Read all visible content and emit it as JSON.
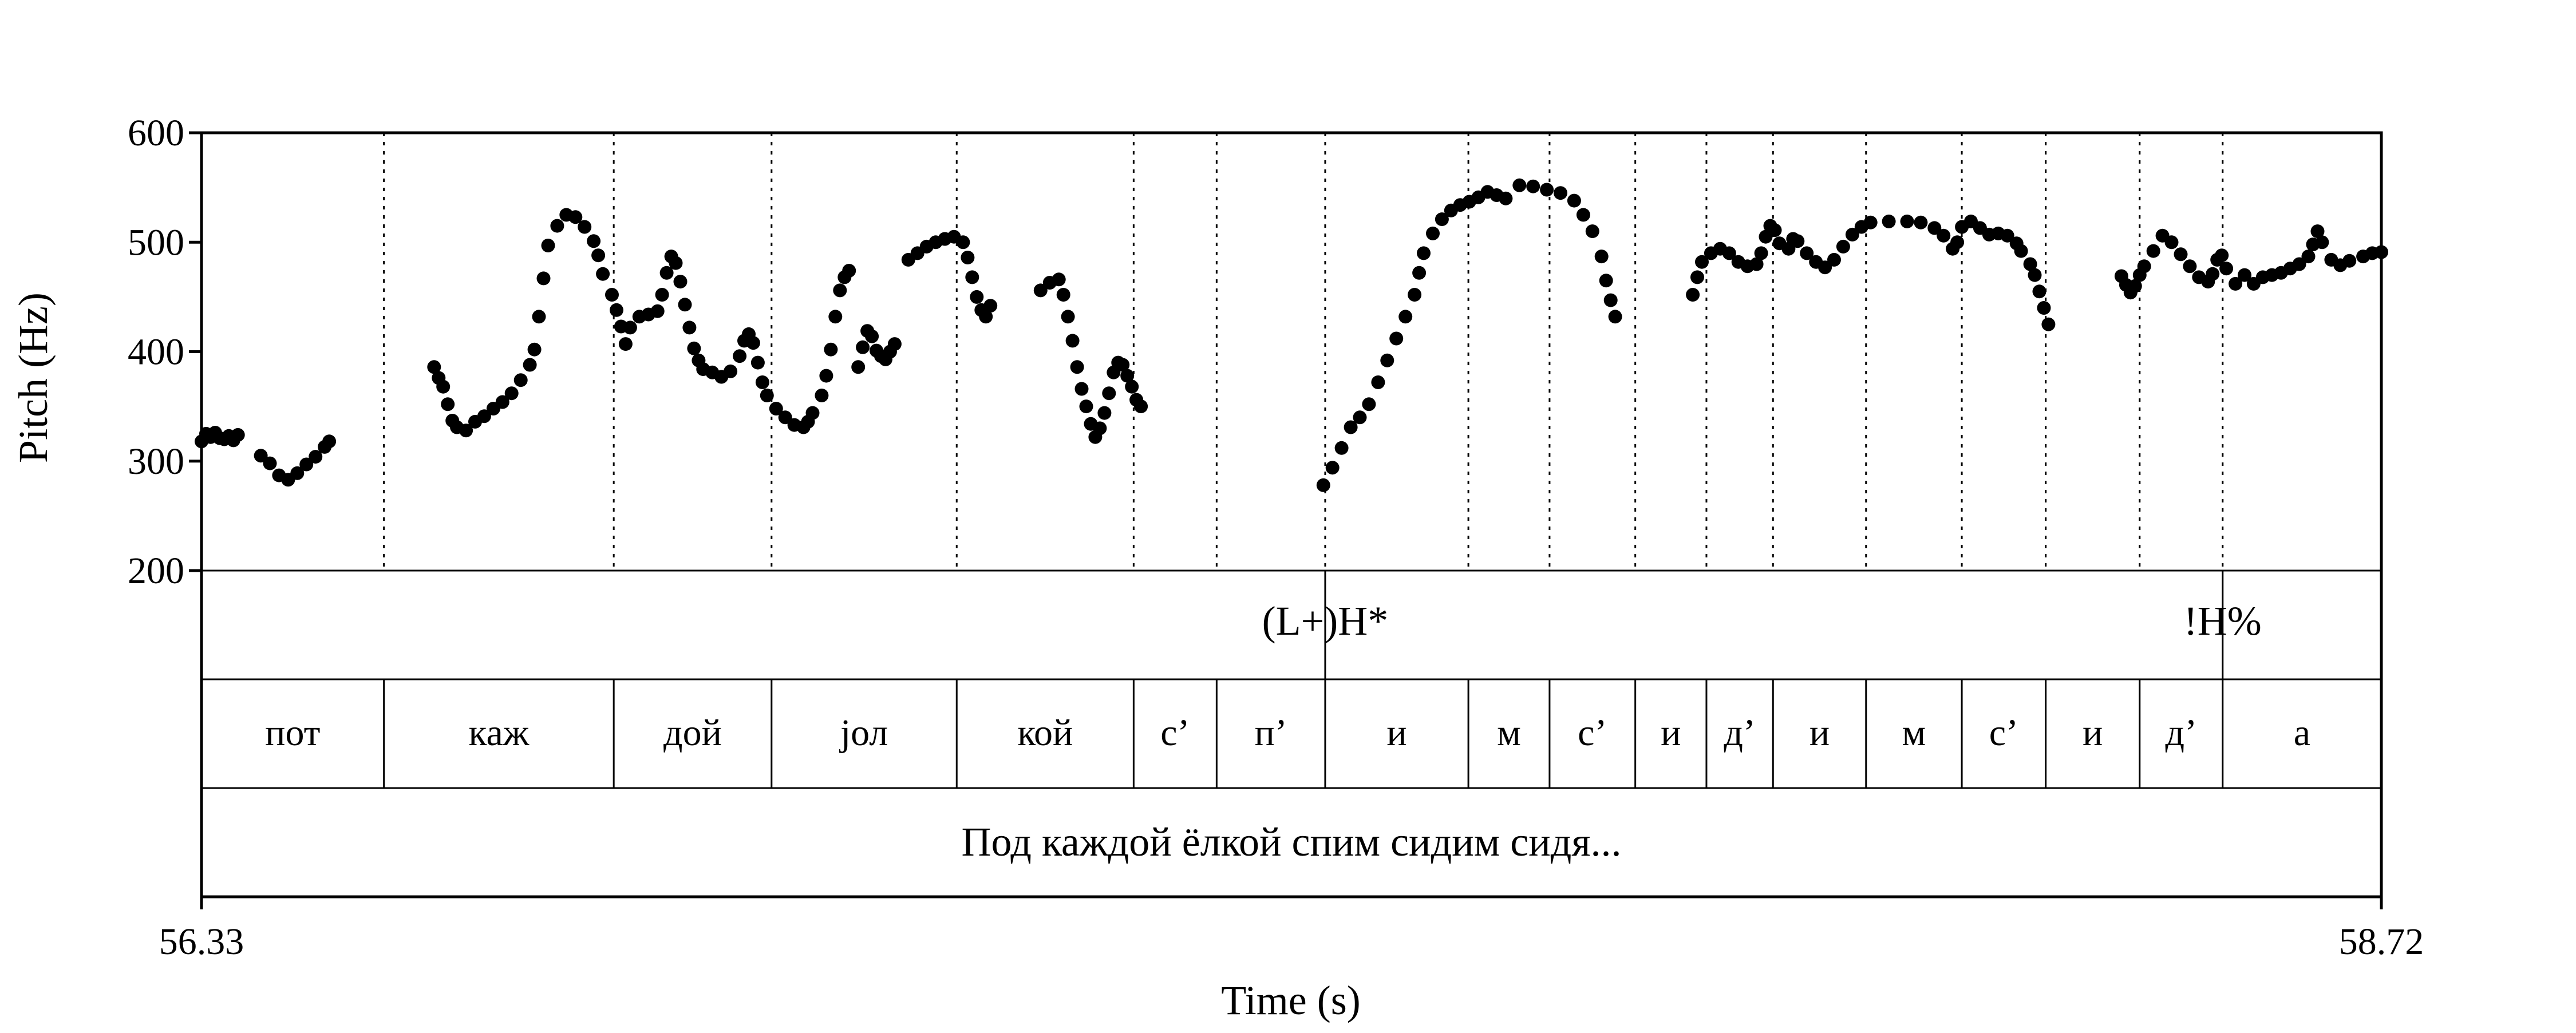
{
  "chart_data": {
    "type": "scatter",
    "xlabel": "Time (s)",
    "ylabel": "Pitch (Hz)",
    "xlim": [
      56.33,
      58.72
    ],
    "ylim": [
      200,
      600
    ],
    "x_tick_labels": [
      "56.33",
      "58.72"
    ],
    "y_ticks": [
      200,
      300,
      400,
      500,
      600
    ],
    "y_tick_labels": [
      "200",
      "300",
      "400",
      "500",
      "600"
    ],
    "grid": false,
    "point_color": "#000000",
    "pitch_segments": [
      [
        [
          56.33,
          318
        ],
        [
          56.335,
          325
        ],
        [
          56.34,
          322
        ],
        [
          56.345,
          326
        ],
        [
          56.35,
          321
        ],
        [
          56.355,
          320
        ],
        [
          56.36,
          323
        ],
        [
          56.365,
          319
        ],
        [
          56.37,
          324
        ]
      ],
      [
        [
          56.395,
          305
        ],
        [
          56.405,
          298
        ],
        [
          56.415,
          287
        ],
        [
          56.425,
          283
        ],
        [
          56.435,
          289
        ],
        [
          56.445,
          297
        ],
        [
          56.455,
          304
        ],
        [
          56.465,
          313
        ],
        [
          56.47,
          318
        ]
      ],
      [
        [
          56.585,
          386
        ],
        [
          56.59,
          376
        ],
        [
          56.595,
          368
        ],
        [
          56.6,
          352
        ],
        [
          56.605,
          337
        ],
        [
          56.61,
          331
        ],
        [
          56.62,
          328
        ],
        [
          56.63,
          336
        ],
        [
          56.64,
          341
        ],
        [
          56.65,
          348
        ],
        [
          56.66,
          354
        ],
        [
          56.67,
          362
        ],
        [
          56.68,
          374
        ],
        [
          56.69,
          388
        ],
        [
          56.695,
          402
        ],
        [
          56.7,
          432
        ],
        [
          56.705,
          467
        ],
        [
          56.71,
          497
        ],
        [
          56.72,
          515
        ],
        [
          56.73,
          525
        ],
        [
          56.74,
          523
        ],
        [
          56.75,
          514
        ],
        [
          56.76,
          501
        ],
        [
          56.765,
          488
        ],
        [
          56.77,
          471
        ],
        [
          56.78,
          452
        ],
        [
          56.785,
          438
        ],
        [
          56.79,
          423
        ],
        [
          56.795,
          407
        ],
        [
          56.8,
          422
        ],
        [
          56.81,
          432
        ],
        [
          56.82,
          434
        ],
        [
          56.83,
          437
        ],
        [
          56.835,
          452
        ],
        [
          56.84,
          472
        ],
        [
          56.845,
          487
        ],
        [
          56.85,
          481
        ],
        [
          56.855,
          464
        ],
        [
          56.86,
          443
        ],
        [
          56.865,
          422
        ],
        [
          56.87,
          403
        ],
        [
          56.875,
          392
        ],
        [
          56.88,
          384
        ],
        [
          56.89,
          381
        ],
        [
          56.9,
          377
        ],
        [
          56.91,
          382
        ],
        [
          56.92,
          396
        ],
        [
          56.925,
          410
        ],
        [
          56.93,
          416
        ],
        [
          56.935,
          408
        ],
        [
          56.94,
          390
        ],
        [
          56.945,
          372
        ],
        [
          56.95,
          360
        ],
        [
          56.96,
          348
        ],
        [
          56.97,
          340
        ],
        [
          56.98,
          333
        ],
        [
          56.99,
          331
        ],
        [
          56.995,
          336
        ],
        [
          57.0,
          344
        ],
        [
          57.01,
          360
        ],
        [
          57.015,
          378
        ],
        [
          57.02,
          402
        ],
        [
          57.025,
          432
        ],
        [
          57.03,
          456
        ],
        [
          57.035,
          468
        ],
        [
          57.04,
          474
        ]
      ],
      [
        [
          57.05,
          386
        ],
        [
          57.055,
          404
        ],
        [
          57.06,
          419
        ],
        [
          57.065,
          414
        ],
        [
          57.07,
          401
        ],
        [
          57.075,
          396
        ],
        [
          57.08,
          393
        ],
        [
          57.085,
          400
        ],
        [
          57.09,
          407
        ]
      ],
      [
        [
          57.105,
          484
        ],
        [
          57.115,
          490
        ],
        [
          57.125,
          496
        ],
        [
          57.135,
          500
        ],
        [
          57.145,
          503
        ],
        [
          57.155,
          505
        ],
        [
          57.165,
          500
        ],
        [
          57.17,
          486
        ],
        [
          57.175,
          468
        ],
        [
          57.18,
          450
        ],
        [
          57.185,
          438
        ],
        [
          57.19,
          432
        ],
        [
          57.195,
          442
        ]
      ],
      [
        [
          57.25,
          456
        ],
        [
          57.26,
          463
        ],
        [
          57.27,
          466
        ],
        [
          57.275,
          452
        ],
        [
          57.28,
          432
        ],
        [
          57.285,
          410
        ],
        [
          57.29,
          386
        ],
        [
          57.295,
          366
        ],
        [
          57.3,
          350
        ],
        [
          57.305,
          334
        ],
        [
          57.31,
          322
        ],
        [
          57.315,
          330
        ],
        [
          57.32,
          344
        ],
        [
          57.325,
          362
        ],
        [
          57.33,
          381
        ],
        [
          57.335,
          390
        ],
        [
          57.34,
          388
        ],
        [
          57.345,
          378
        ],
        [
          57.35,
          368
        ],
        [
          57.355,
          356
        ],
        [
          57.36,
          350
        ]
      ],
      [
        [
          57.56,
          278
        ],
        [
          57.57,
          294
        ],
        [
          57.58,
          312
        ],
        [
          57.59,
          331
        ],
        [
          57.6,
          340
        ],
        [
          57.61,
          352
        ],
        [
          57.62,
          372
        ],
        [
          57.63,
          392
        ],
        [
          57.64,
          412
        ],
        [
          57.65,
          432
        ],
        [
          57.66,
          452
        ],
        [
          57.665,
          472
        ],
        [
          57.67,
          490
        ],
        [
          57.68,
          508
        ],
        [
          57.69,
          521
        ],
        [
          57.7,
          529
        ],
        [
          57.71,
          534
        ],
        [
          57.72,
          537
        ],
        [
          57.73,
          541
        ],
        [
          57.74,
          546
        ],
        [
          57.75,
          543
        ],
        [
          57.76,
          540
        ]
      ],
      [
        [
          57.775,
          552
        ],
        [
          57.79,
          551
        ],
        [
          57.805,
          548
        ],
        [
          57.82,
          545
        ],
        [
          57.835,
          538
        ],
        [
          57.845,
          525
        ],
        [
          57.855,
          510
        ],
        [
          57.865,
          487
        ],
        [
          57.87,
          465
        ],
        [
          57.875,
          447
        ],
        [
          57.88,
          432
        ]
      ],
      [
        [
          57.965,
          452
        ],
        [
          57.97,
          468
        ],
        [
          57.975,
          482
        ],
        [
          57.985,
          490
        ],
        [
          57.995,
          494
        ],
        [
          58.005,
          490
        ],
        [
          58.015,
          482
        ],
        [
          58.025,
          478
        ],
        [
          58.035,
          480
        ],
        [
          58.04,
          490
        ],
        [
          58.045,
          505
        ],
        [
          58.05,
          515
        ],
        [
          58.055,
          511
        ],
        [
          58.06,
          499
        ],
        [
          58.07,
          494
        ],
        [
          58.075,
          503
        ],
        [
          58.08,
          501
        ],
        [
          58.09,
          490
        ],
        [
          58.1,
          482
        ],
        [
          58.11,
          477
        ],
        [
          58.12,
          484
        ],
        [
          58.13,
          496
        ],
        [
          58.14,
          507
        ],
        [
          58.15,
          514
        ],
        [
          58.16,
          518
        ],
        [
          58.18,
          519
        ],
        [
          58.2,
          519
        ],
        [
          58.215,
          518
        ],
        [
          58.23,
          513
        ],
        [
          58.24,
          506
        ],
        [
          58.25,
          494
        ],
        [
          58.255,
          500
        ],
        [
          58.26,
          514
        ],
        [
          58.27,
          519
        ],
        [
          58.28,
          513
        ],
        [
          58.29,
          507
        ],
        [
          58.3,
          508
        ],
        [
          58.31,
          506
        ],
        [
          58.32,
          499
        ],
        [
          58.325,
          492
        ],
        [
          58.335,
          480
        ],
        [
          58.34,
          470
        ],
        [
          58.345,
          455
        ],
        [
          58.35,
          440
        ],
        [
          58.355,
          425
        ]
      ],
      [
        [
          58.435,
          469
        ],
        [
          58.44,
          461
        ],
        [
          58.445,
          454
        ],
        [
          58.45,
          460
        ],
        [
          58.455,
          470
        ],
        [
          58.46,
          478
        ],
        [
          58.47,
          492
        ],
        [
          58.48,
          506
        ],
        [
          58.49,
          500
        ],
        [
          58.5,
          489
        ],
        [
          58.51,
          478
        ],
        [
          58.52,
          468
        ],
        [
          58.53,
          464
        ],
        [
          58.535,
          471
        ],
        [
          58.54,
          484
        ],
        [
          58.545,
          488
        ],
        [
          58.55,
          476
        ],
        [
          58.56,
          462
        ],
        [
          58.57,
          470
        ],
        [
          58.58,
          462
        ],
        [
          58.59,
          468
        ],
        [
          58.6,
          470
        ],
        [
          58.61,
          472
        ],
        [
          58.62,
          476
        ],
        [
          58.63,
          480
        ],
        [
          58.64,
          487
        ],
        [
          58.645,
          498
        ],
        [
          58.65,
          510
        ],
        [
          58.655,
          500
        ],
        [
          58.665,
          484
        ],
        [
          58.675,
          479
        ],
        [
          58.685,
          483
        ],
        [
          58.7,
          487
        ],
        [
          58.71,
          490
        ],
        [
          58.72,
          491
        ]
      ]
    ],
    "boundaries": [
      56.53,
      56.782,
      56.955,
      57.158,
      57.352,
      57.443,
      57.562,
      57.719,
      57.808,
      57.902,
      57.98,
      58.053,
      58.155,
      58.26,
      58.352,
      58.455,
      58.546
    ],
    "tones": [
      {
        "time": 57.562,
        "label": "(L+)H*"
      },
      {
        "time": 58.546,
        "label": "!H%"
      }
    ],
    "syllables": [
      {
        "start": 56.33,
        "end": 56.53,
        "label": "пот"
      },
      {
        "start": 56.53,
        "end": 56.782,
        "label": "каж"
      },
      {
        "start": 56.782,
        "end": 56.955,
        "label": "дой"
      },
      {
        "start": 56.955,
        "end": 57.158,
        "label": "jол"
      },
      {
        "start": 57.158,
        "end": 57.352,
        "label": "кой"
      },
      {
        "start": 57.352,
        "end": 57.443,
        "label": "с’"
      },
      {
        "start": 57.443,
        "end": 57.562,
        "label": "п’"
      },
      {
        "start": 57.562,
        "end": 57.719,
        "label": "и"
      },
      {
        "start": 57.719,
        "end": 57.808,
        "label": "м"
      },
      {
        "start": 57.808,
        "end": 57.902,
        "label": "с’"
      },
      {
        "start": 57.902,
        "end": 57.98,
        "label": "и"
      },
      {
        "start": 57.98,
        "end": 58.053,
        "label": "д’"
      },
      {
        "start": 58.053,
        "end": 58.155,
        "label": "и"
      },
      {
        "start": 58.155,
        "end": 58.26,
        "label": "м"
      },
      {
        "start": 58.26,
        "end": 58.352,
        "label": "с’"
      },
      {
        "start": 58.352,
        "end": 58.455,
        "label": "и"
      },
      {
        "start": 58.455,
        "end": 58.546,
        "label": "д’"
      },
      {
        "start": 58.546,
        "end": 58.72,
        "label": "а"
      }
    ],
    "utterance": "Под каждой ёлкой спим сидим сидя..."
  }
}
